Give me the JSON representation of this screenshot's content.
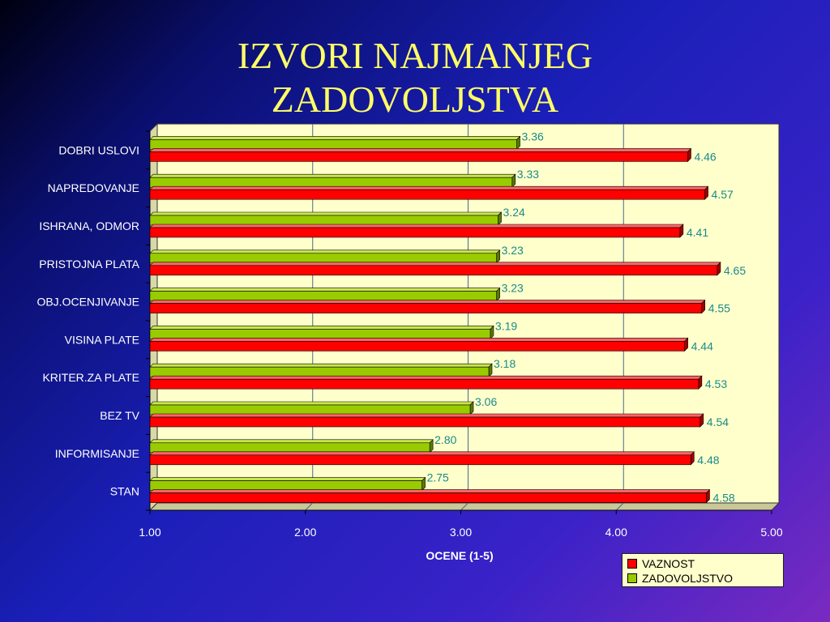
{
  "chart_data": {
    "type": "bar",
    "orientation": "horizontal",
    "title": "IZVORI NAJMANJEG ZADOVOLJSTVA",
    "title_lines": [
      "IZVORI NAJMANJEG",
      "ZADOVOLJSTVA"
    ],
    "xlabel": "OCENE (1-5)",
    "ylabel": "",
    "xlim": [
      1,
      5
    ],
    "x_ticks": [
      "1.00",
      "2.00",
      "3.00",
      "4.00",
      "5.00"
    ],
    "categories": [
      "DOBRI USLOVI",
      "NAPREDOVANJE",
      "ISHRANA, ODMOR",
      "PRISTOJNA PLATA",
      "OBJ.OCENJIVANJE",
      "VISINA PLATE",
      "KRITER.ZA PLATE",
      "BEZ TV",
      "INFORMISANJE",
      "STAN"
    ],
    "series": [
      {
        "name": "VAZNOST",
        "color": "#ff0000",
        "values": [
          4.46,
          4.57,
          4.41,
          4.65,
          4.55,
          4.44,
          4.53,
          4.54,
          4.48,
          4.58
        ],
        "labels": [
          "4.46",
          "4.57",
          "4.41",
          "4.65",
          "4.55",
          "4.44",
          "4.53",
          "4.54",
          "4.48",
          "4.58"
        ]
      },
      {
        "name": "ZADOVOLJSTVO",
        "color": "#99cc00",
        "values": [
          3.36,
          3.33,
          3.24,
          3.23,
          3.23,
          3.19,
          3.18,
          3.06,
          2.8,
          2.75
        ],
        "labels": [
          "3.36",
          "3.33",
          "3.24",
          "3.23",
          "3.23",
          "3.19",
          "3.18",
          "3.06",
          "2.80",
          "2.75"
        ]
      }
    ],
    "grid": true,
    "legend_position": "bottom-right",
    "plot_background": "#ffffcc",
    "label_color": "#1a8a8a"
  }
}
